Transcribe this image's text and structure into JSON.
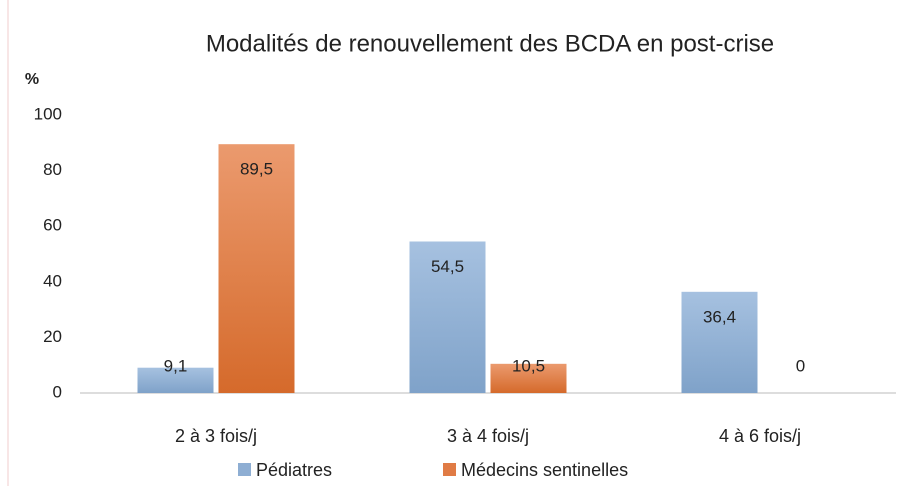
{
  "chart_data": {
    "type": "bar",
    "title": "Modalités de renouvellement des BCDA en post-crise",
    "y_label": "%",
    "categories": [
      "2 à 3 fois/j",
      "3 à 4 fois/j",
      "4 à 6 fois/j"
    ],
    "series": [
      {
        "name": "Pédiatres",
        "color": "#8eaed3",
        "values": [
          9.1,
          54.5,
          36.4
        ],
        "value_labels": [
          "9,1",
          "54,5",
          "36,4"
        ]
      },
      {
        "name": "Médecins sentinelles",
        "color": "#e07b45",
        "values": [
          89.5,
          10.5,
          0
        ],
        "value_labels": [
          "89,5",
          "10,5",
          "0"
        ]
      }
    ],
    "ylim": [
      0,
      100
    ],
    "yticks": [
      0,
      20,
      40,
      60,
      80,
      100
    ],
    "grid": false,
    "legend": "bottom"
  }
}
